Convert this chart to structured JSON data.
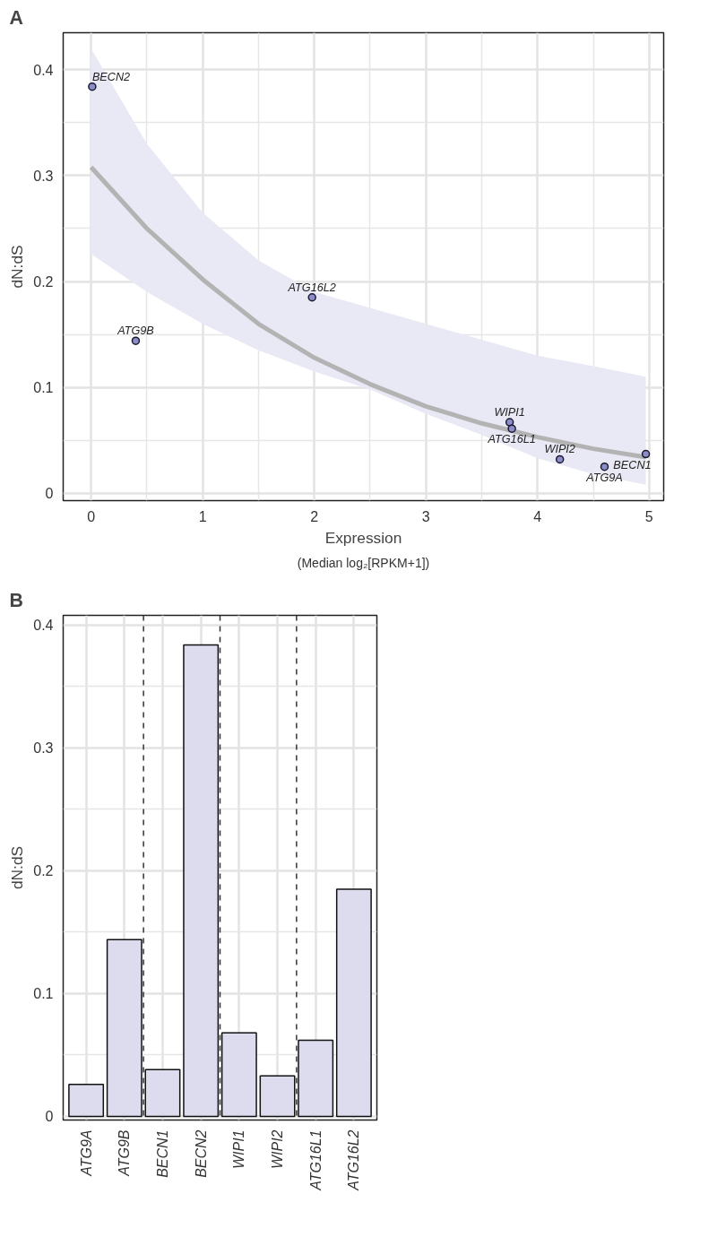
{
  "chart_data": [
    {
      "type": "scatter",
      "title": "A",
      "xlabel": "Expression",
      "ylabel": "dN:dS",
      "annotations": [
        "(Median log₂[RPKM+1])",
        {
          "text": "BECN2",
          "x": 0.01,
          "y": 0.384
        },
        {
          "text": "ATG9B",
          "x": 0.4,
          "y": 0.144
        },
        {
          "text": "ATG16L2",
          "x": 1.98,
          "y": 0.185
        },
        {
          "text": "WIPI1",
          "x": 3.75,
          "y": 0.067
        },
        {
          "text": "ATG16L1",
          "x": 3.77,
          "y": 0.061
        },
        {
          "text": "WIPI2",
          "x": 4.2,
          "y": 0.032
        },
        {
          "text": "ATG9A",
          "x": 4.6,
          "y": 0.025
        },
        {
          "text": "BECN1",
          "x": 4.97,
          "y": 0.037
        }
      ],
      "series": [
        {
          "type": "scatter",
          "marker": "circle",
          "color": "#8c8cc8",
          "x": [
            0.01,
            0.4,
            1.98,
            3.75,
            3.77,
            4.2,
            4.6,
            4.97
          ],
          "values": [
            0.384,
            0.144,
            0.185,
            0.067,
            0.061,
            0.032,
            0.025,
            0.037
          ]
        },
        {
          "type": "line",
          "color": "#b3b3b3",
          "x": [
            0,
            0.5,
            1,
            1.5,
            2,
            2.5,
            3,
            3.5,
            4,
            4.5,
            4.97
          ],
          "values": [
            0.308,
            0.25,
            0.202,
            0.16,
            0.128,
            0.103,
            0.082,
            0.066,
            0.053,
            0.042,
            0.034
          ],
          "lower": [
            0.226,
            0.19,
            0.16,
            0.135,
            0.115,
            0.098,
            0.075,
            0.055,
            0.033,
            0.018,
            0.008
          ],
          "upper": [
            0.42,
            0.33,
            0.265,
            0.22,
            0.19,
            0.175,
            0.16,
            0.145,
            0.13,
            0.12,
            0.11
          ]
        }
      ],
      "xlim": [
        -0.25,
        5.13
      ],
      "ylim": [
        -0.007,
        0.435
      ],
      "xticks": [
        0,
        1,
        2,
        3,
        4,
        5
      ],
      "yticks": [
        0,
        0.1,
        0.2,
        0.3,
        0.4
      ],
      "grid": true
    },
    {
      "type": "bar",
      "title": "B",
      "ylabel": "dN:dS",
      "categories": [
        "ATG9A",
        "ATG9B",
        "BECN1",
        "BECN2",
        "WIPI1",
        "WIPI2",
        "ATG16L1",
        "ATG16L2"
      ],
      "values": [
        0.026,
        0.144,
        0.038,
        0.384,
        0.068,
        0.033,
        0.062,
        0.185
      ],
      "color": "#dcdcee",
      "ylim": [
        -0.003,
        0.408
      ],
      "yticks": [
        0,
        0.1,
        0.2,
        0.3,
        0.4
      ],
      "grid": true
    }
  ]
}
